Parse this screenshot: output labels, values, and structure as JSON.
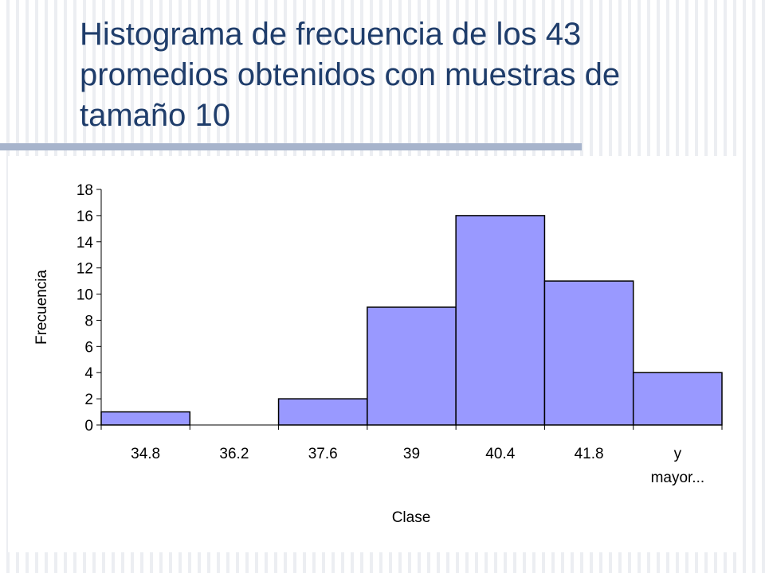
{
  "slide": {
    "title_line1": "Histograma de frecuencia de los 43",
    "title_line2": "promedios obtenidos con muestras de",
    "title_line3": "tamaño 10"
  },
  "colors": {
    "title": "#1f3d6b",
    "bar_fill": "#9999ff",
    "bar_stroke": "#000000",
    "rule": "#a7b4cc"
  },
  "chart_data": {
    "type": "bar",
    "categories": [
      "34.8",
      "36.2",
      "37.6",
      "39",
      "40.4",
      "41.8",
      "y mayor..."
    ],
    "category_lines": [
      [
        "34.8"
      ],
      [
        "36.2"
      ],
      [
        "37.6"
      ],
      [
        "39"
      ],
      [
        "40.4"
      ],
      [
        "41.8"
      ],
      [
        "y",
        "mayor..."
      ]
    ],
    "values": [
      1,
      0,
      2,
      9,
      16,
      11,
      4
    ],
    "xlabel": "Clase",
    "ylabel": "Frecuencia",
    "ylim": [
      0,
      18
    ],
    "yticks": [
      0,
      2,
      4,
      6,
      8,
      10,
      12,
      14,
      16,
      18
    ],
    "grid": false,
    "legend": "none"
  }
}
